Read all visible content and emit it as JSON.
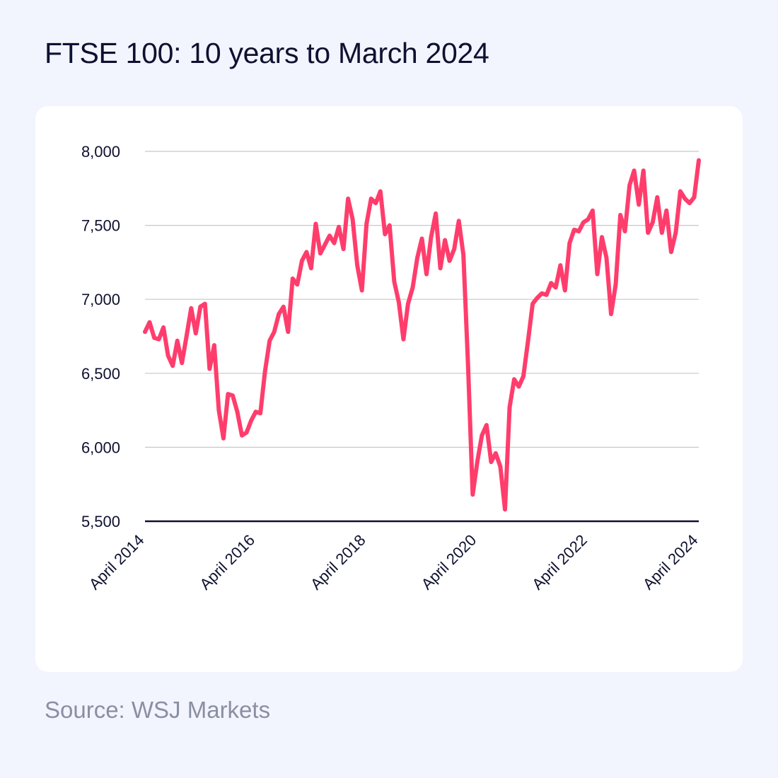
{
  "title": "FTSE 100: 10 years to March 2024",
  "source": "Source: WSJ Markets",
  "colors": {
    "background": "#f2f5fd",
    "card": "#ffffff",
    "line": "#ff3d6c",
    "text": "#0e1130",
    "grid": "#c8c8c8",
    "source_text": "#8a8fa3"
  },
  "chart_data": {
    "type": "line",
    "title": "FTSE 100: 10 years to March 2024",
    "xlabel": "",
    "ylabel": "",
    "ylim": [
      5500,
      8000
    ],
    "y_ticks": [
      8000,
      7500,
      7000,
      6500,
      6000,
      5500
    ],
    "y_tick_labels": [
      "8,000",
      "7,500",
      "7,000",
      "6,500",
      "6,000",
      "5,500"
    ],
    "x_tick_labels": [
      "April 2014",
      "April 2016",
      "April 2018",
      "April 2020",
      "April 2022",
      "April 2024"
    ],
    "x_tick_positions": [
      0,
      24,
      48,
      72,
      96,
      120
    ],
    "grid": true,
    "legend": "none",
    "series": [
      {
        "values": [
          6780,
          6845,
          6740,
          6730,
          6810,
          6620,
          6550,
          6720,
          6570,
          6750,
          6940,
          6770,
          6950,
          6970,
          6530,
          6690,
          6250,
          6060,
          6360,
          6350,
          6240,
          6080,
          6100,
          6180,
          6240,
          6230,
          6510,
          6720,
          6780,
          6900,
          6950,
          6780,
          7140,
          7100,
          7260,
          7320,
          7210,
          7510,
          7310,
          7370,
          7430,
          7380,
          7490,
          7340,
          7680,
          7540,
          7230,
          7060,
          7510,
          7680,
          7650,
          7730,
          7440,
          7500,
          7120,
          6980,
          6730,
          6970,
          7080,
          7280,
          7410,
          7170,
          7420,
          7580,
          7210,
          7400,
          7260,
          7340,
          7530,
          7300,
          6550,
          5680,
          5900,
          6080,
          6150,
          5900,
          5960,
          5870,
          5580,
          6270,
          6460,
          6410,
          6480,
          6720,
          6970,
          7010,
          7040,
          7030,
          7110,
          7080,
          7230,
          7060,
          7380,
          7470,
          7460,
          7520,
          7540,
          7600,
          7170,
          7420,
          7280,
          6900,
          7100,
          7570,
          7460,
          7770,
          7870,
          7640,
          7870,
          7450,
          7520,
          7690,
          7450,
          7600,
          7320,
          7450,
          7730,
          7680,
          7650,
          7690,
          7940
        ]
      }
    ]
  }
}
